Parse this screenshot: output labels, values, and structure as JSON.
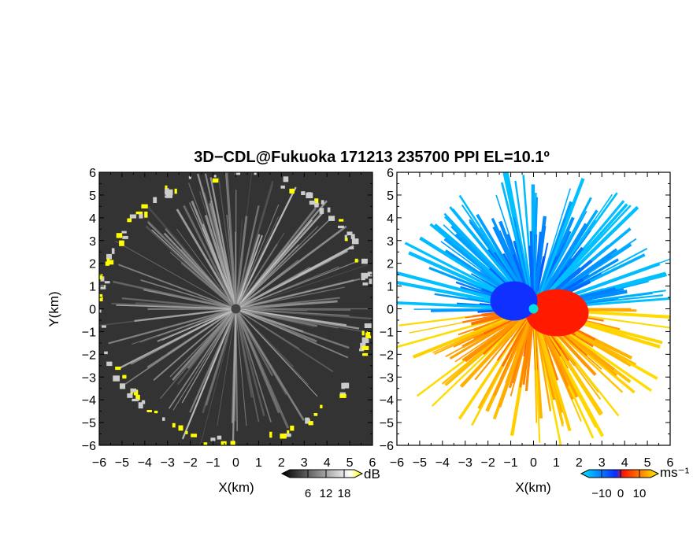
{
  "title": "3D−CDL@Fukuoka 171213 235700 PPI EL=10.1º",
  "chart_data": [
    {
      "type": "heatmap",
      "name": "backscatter-intensity-ppi",
      "xlabel": "X(km)",
      "ylabel": "Y(km)",
      "xlim": [
        -6,
        6
      ],
      "ylim": [
        -6,
        6
      ],
      "xticks": [
        "−6",
        "−5",
        "−4",
        "−3",
        "−2",
        "−1",
        "0",
        "1",
        "2",
        "3",
        "4",
        "5",
        "6"
      ],
      "yticks": [
        "−6",
        "−5",
        "−4",
        "−3",
        "−2",
        "−1",
        "0",
        "1",
        "2",
        "3",
        "4",
        "5",
        "6"
      ],
      "colorbar": {
        "unit": "dB",
        "ticks": [
          "6",
          "12",
          "18"
        ],
        "range": [
          0,
          21
        ],
        "colors": [
          "#000000",
          "#ffffff",
          "#ffff00"
        ]
      },
      "background_color": "#333333"
    },
    {
      "type": "heatmap",
      "name": "radial-velocity-ppi",
      "xlabel": "X(km)",
      "ylabel": "",
      "xlim": [
        -6,
        6
      ],
      "ylim": [
        -6,
        6
      ],
      "xticks": [
        "−6",
        "−5",
        "−4",
        "−3",
        "−2",
        "−1",
        "0",
        "1",
        "2",
        "3",
        "4",
        "5",
        "6"
      ],
      "yticks": [
        "−6",
        "−5",
        "−4",
        "−3",
        "−2",
        "−1",
        "0",
        "1",
        "2",
        "3",
        "4",
        "5",
        "6"
      ],
      "colorbar": {
        "unit": "ms⁻¹",
        "ticks": [
          "−10",
          "0",
          "10"
        ],
        "range": [
          -15,
          15
        ],
        "colors": [
          "#00e5ff",
          "#0a2cff",
          "#ff1a00",
          "#ffee00"
        ]
      },
      "background_color": "#ffffff"
    }
  ]
}
